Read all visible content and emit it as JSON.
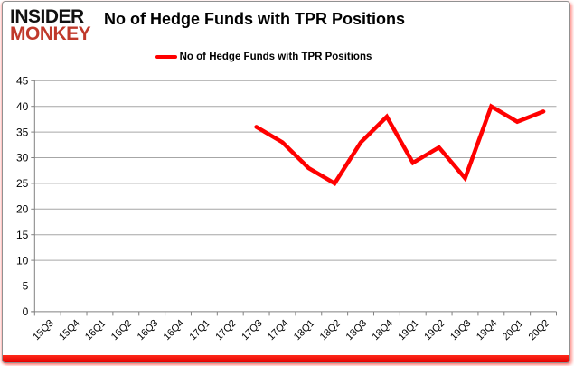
{
  "brand": {
    "line1": "INSIDER",
    "line2": "MONKEY"
  },
  "title": "No of Hedge Funds with TPR Positions",
  "legend": {
    "label": "No of Hedge Funds with TPR Positions",
    "color": "#ff0000"
  },
  "chart_data": {
    "type": "line",
    "title": "No of Hedge Funds with TPR Positions",
    "categories": [
      "15Q3",
      "15Q4",
      "16Q1",
      "16Q2",
      "16Q3",
      "16Q4",
      "17Q1",
      "17Q2",
      "17Q3",
      "17Q4",
      "18Q1",
      "18Q2",
      "18Q3",
      "18Q4",
      "19Q1",
      "19Q2",
      "19Q3",
      "19Q4",
      "20Q1",
      "20Q2"
    ],
    "series": [
      {
        "name": "No of Hedge Funds with TPR Positions",
        "color": "#ff0000",
        "values": [
          null,
          null,
          null,
          null,
          null,
          null,
          null,
          null,
          36,
          33,
          28,
          25,
          33,
          38,
          29,
          32,
          26,
          40,
          37,
          39
        ]
      }
    ],
    "xlabel": "",
    "ylabel": "",
    "ylim": [
      0,
      45
    ],
    "ytick_step": 5,
    "grid": true,
    "legend_position": "top-center"
  },
  "colors": {
    "line": "#ff0000",
    "grid": "#a6a6a6",
    "axis": "#808080",
    "text": "#000000",
    "brand_black": "#111111",
    "brand_red": "#c0392b",
    "accent_bar": "#e20000"
  }
}
